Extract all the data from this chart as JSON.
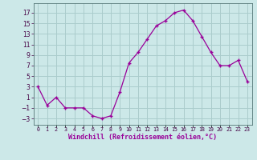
{
  "x": [
    0,
    1,
    2,
    3,
    4,
    5,
    6,
    7,
    8,
    9,
    10,
    11,
    12,
    13,
    14,
    15,
    16,
    17,
    18,
    19,
    20,
    21,
    22,
    23
  ],
  "y": [
    3,
    -0.5,
    1,
    -1,
    -1,
    -1,
    -2.5,
    -3,
    -2.5,
    2,
    7.5,
    9.5,
    12,
    14.5,
    15.5,
    17,
    17.5,
    15.5,
    12.5,
    9.5,
    7,
    7,
    8,
    4
  ],
  "line_color": "#990099",
  "marker_color": "#990099",
  "bg_color": "#cce8e8",
  "grid_color": "#aacccc",
  "xlabel": "Windchill (Refroidissement éolien,°C)",
  "xlabel_color": "#990099",
  "yticks": [
    -3,
    -1,
    1,
    3,
    5,
    7,
    9,
    11,
    13,
    15,
    17
  ],
  "ylim": [
    -4.2,
    18.8
  ],
  "xlim": [
    -0.5,
    23.5
  ],
  "xtick_labels": [
    "0",
    "1",
    "2",
    "3",
    "4",
    "5",
    "6",
    "7",
    "8",
    "9",
    "10",
    "11",
    "12",
    "13",
    "14",
    "15",
    "16",
    "17",
    "18",
    "19",
    "20",
    "21",
    "22",
    "23"
  ]
}
